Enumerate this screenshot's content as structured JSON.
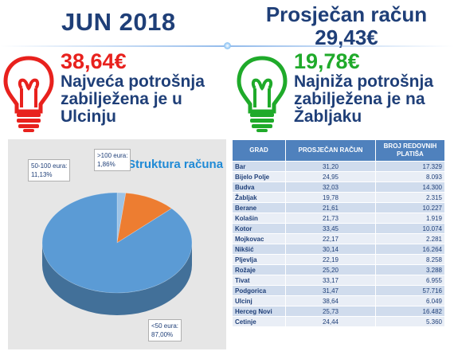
{
  "header": {
    "month": "JUN 2018",
    "avg_label": "Prosječan račun",
    "avg_value": "29,43€"
  },
  "highest": {
    "value": "38,64€",
    "description": "Najveća potrošnja zabilježena je u Ulcinju",
    "color": "#e8211d"
  },
  "lowest": {
    "value": "19,78€",
    "description": "Najniža potrošnja zabilježena je na Žabljaku",
    "color": "#1faa2a"
  },
  "chart_data": [
    {
      "type": "pie",
      "title": "Struktura računa",
      "labels": [
        {
          "range": "<50 eura:",
          "percent": "87,00%"
        },
        {
          "range": "50-100 eura:",
          "percent": "11,13%"
        },
        {
          "range": ">100 eura:",
          "percent": "1,86%"
        }
      ],
      "values": [
        87.0,
        11.13,
        1.86
      ],
      "colors": [
        "#5b9bd5",
        "#ed7d31",
        "#9dc3e6"
      ]
    },
    {
      "type": "table",
      "columns": [
        "GRAD",
        "PROSJEČAN RAČUN",
        "BROJ REDOVNIH PLATIŠA"
      ],
      "rows": [
        [
          "Bar",
          "31,20",
          "17.329"
        ],
        [
          "Bijelo Polje",
          "24,95",
          "8.093"
        ],
        [
          "Budva",
          "32,03",
          "14.300"
        ],
        [
          "Žabljak",
          "19,78",
          "2.315"
        ],
        [
          "Berane",
          "21,61",
          "10.227"
        ],
        [
          "Kolašin",
          "21,73",
          "1.919"
        ],
        [
          "Kotor",
          "33,45",
          "10.074"
        ],
        [
          "Mojkovac",
          "22,17",
          "2.281"
        ],
        [
          "Nikšić",
          "30,14",
          "16.264"
        ],
        [
          "Pljevlja",
          "22,19",
          "8.258"
        ],
        [
          "Rožaje",
          "25,20",
          "3.288"
        ],
        [
          "Tivat",
          "33,17",
          "6.955"
        ],
        [
          "Podgorica",
          "31,47",
          "57.716"
        ],
        [
          "Ulcinj",
          "38,64",
          "6.049"
        ],
        [
          "Herceg Novi",
          "25,73",
          "16.482"
        ],
        [
          "Cetinje",
          "24,44",
          "5.360"
        ]
      ]
    }
  ]
}
